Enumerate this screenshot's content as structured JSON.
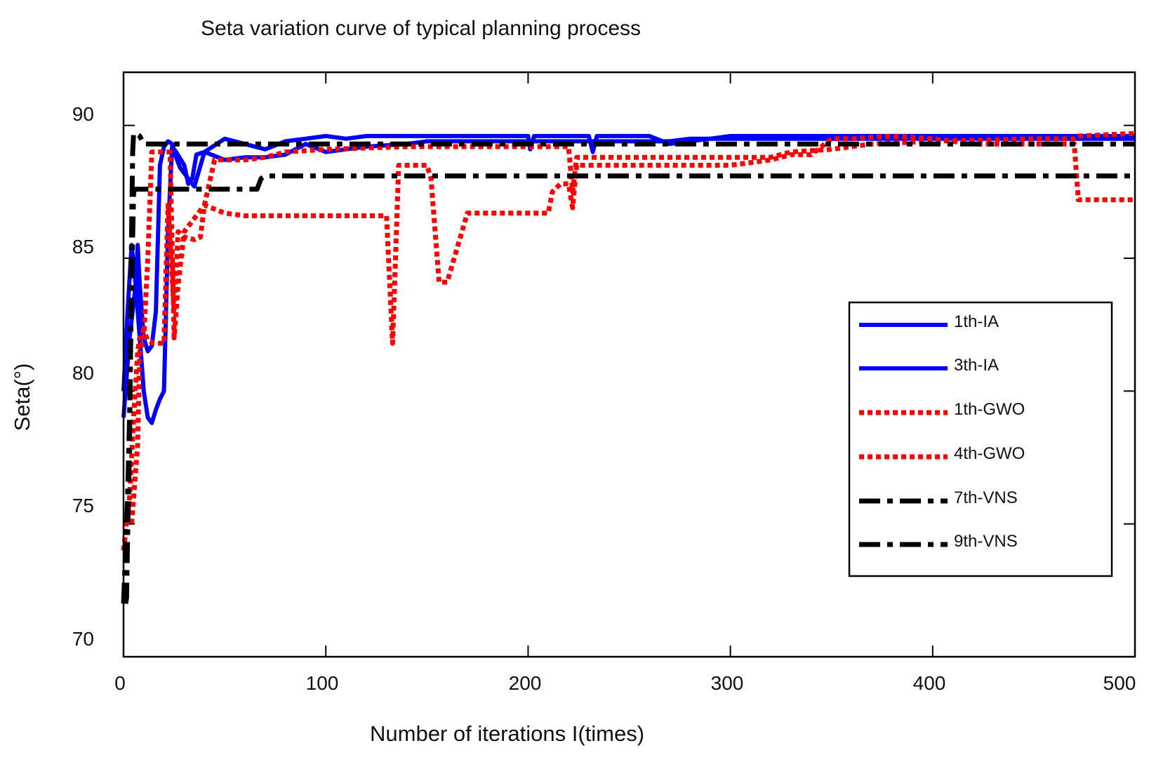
{
  "colors": {
    "ia": "#0000ff",
    "gwo": "#ff0000",
    "vns": "#000000"
  },
  "chart_data": {
    "type": "line",
    "title": "Seta variation curve of typical planning process",
    "xlabel": "Number of iterations I(times)",
    "ylabel": "Seta(°)",
    "xlim": [
      0,
      500
    ],
    "ylim": [
      70,
      92
    ],
    "xticks": [
      0,
      100,
      200,
      300,
      400,
      500
    ],
    "xtick_labels": [
      "0",
      "100",
      "200",
      "300",
      "400",
      "500"
    ],
    "yticks": [
      70,
      75,
      80,
      85,
      90
    ],
    "ytick_labels": [
      "70",
      "75",
      "80",
      "85",
      "90"
    ],
    "legend_position": "right",
    "series": [
      {
        "name": "1th-IA",
        "style": "solid",
        "color": "#0000ff",
        "x": [
          0,
          3,
          6,
          7,
          8,
          10,
          12,
          14,
          16,
          18,
          20,
          22,
          24,
          26,
          28,
          30,
          35,
          40,
          50,
          60,
          70,
          80,
          90,
          100,
          110,
          120,
          200,
          201,
          203,
          205,
          230,
          232,
          234,
          236,
          240,
          260,
          270,
          280,
          300,
          500
        ],
        "y": [
          79,
          82,
          84,
          85.5,
          84,
          82,
          81.5,
          81.7,
          83,
          88.5,
          89.2,
          89.4,
          89.3,
          88.8,
          88.4,
          88.2,
          87.7,
          89,
          89.5,
          89.3,
          89.1,
          89.4,
          89.5,
          89.6,
          89.5,
          89.6,
          89.6,
          89.1,
          89.6,
          89.6,
          89.6,
          89.0,
          89.6,
          89.6,
          89.6,
          89.6,
          89.3,
          89.4,
          89.6,
          89.6
        ]
      },
      {
        "name": "3th-IA",
        "style": "solid",
        "color": "#0000ff",
        "x": [
          0,
          2,
          4,
          6,
          8,
          10,
          12,
          14,
          16,
          18,
          20,
          22,
          24,
          26,
          30,
          32,
          34,
          36,
          40,
          50,
          60,
          70,
          80,
          90,
          100,
          110,
          120,
          140,
          150,
          260,
          270,
          280,
          300,
          400,
          500
        ],
        "y": [
          80,
          83,
          85.5,
          84,
          82,
          80,
          79,
          78.8,
          79.3,
          79.7,
          80,
          86,
          89.2,
          89,
          88.5,
          87.8,
          88,
          88.9,
          89,
          88.7,
          88.8,
          88.8,
          88.9,
          89.3,
          89.0,
          89.1,
          89.2,
          89.3,
          89.4,
          89.4,
          89.4,
          89.5,
          89.5,
          89.5,
          89.5
        ]
      },
      {
        "name": "1th-GWO",
        "style": "dotted",
        "color": "#ff0000",
        "x": [
          0,
          4,
          5,
          7,
          8,
          10,
          12,
          14,
          20,
          23,
          25,
          27,
          30,
          40,
          50,
          60,
          80,
          100,
          120,
          130,
          133,
          134,
          136,
          140,
          150,
          152,
          156,
          160,
          170,
          200,
          210,
          212,
          216,
          220,
          222,
          224,
          230,
          300,
          320,
          330,
          340,
          350,
          360,
          380,
          400,
          420,
          450,
          470,
          472,
          480,
          500
        ],
        "y": [
          75,
          75,
          76,
          78,
          81.5,
          82,
          85,
          89,
          89,
          89,
          82,
          84,
          86,
          87,
          86.7,
          86.6,
          86.6,
          86.6,
          86.6,
          86.6,
          81.8,
          84,
          88.5,
          88.5,
          88.5,
          88.0,
          84.1,
          84.1,
          86.7,
          86.7,
          86.7,
          87.5,
          87.8,
          87.8,
          86.9,
          88.5,
          88.5,
          88.5,
          88.7,
          88.9,
          88.9,
          89.5,
          89.5,
          89.6,
          89.5,
          89.3,
          89.3,
          89.3,
          87.2,
          87.2,
          87.2
        ]
      },
      {
        "name": "4th-GWO",
        "style": "dotted",
        "color": "#ff0000",
        "x": [
          0,
          3,
          5,
          7,
          8,
          10,
          12,
          15,
          18,
          20,
          22,
          25,
          27,
          30,
          35,
          38,
          40,
          45,
          50,
          60,
          70,
          80,
          100,
          140,
          150,
          220,
          222,
          224,
          230,
          250,
          300,
          320,
          330,
          350,
          370,
          400,
          450,
          470,
          472,
          500
        ],
        "y": [
          74,
          76,
          79,
          81.5,
          82,
          82.3,
          81.9,
          81.8,
          81.8,
          81.8,
          87,
          83,
          86,
          85.8,
          85.7,
          85.8,
          87,
          88.7,
          88.7,
          88.7,
          88.8,
          89.0,
          89.1,
          89.2,
          89.2,
          89.2,
          87.5,
          88.8,
          88.8,
          88.8,
          88.8,
          88.8,
          89.0,
          89.1,
          89.3,
          89.4,
          89.5,
          89.5,
          89.6,
          89.7
        ]
      },
      {
        "name": "7th-VNS",
        "style": "dash-dot",
        "color": "#000000",
        "x": [
          1,
          1.5,
          2,
          2.5,
          3,
          3.5,
          4,
          4.5,
          5,
          6,
          8,
          10,
          30,
          60,
          66,
          68,
          70,
          100,
          200,
          300,
          400,
          500
        ],
        "y": [
          72,
          72.2,
          74.5,
          76,
          78,
          82,
          86,
          89,
          89.7,
          89.7,
          89.6,
          89.3,
          89.3,
          89.3,
          89.3,
          89.3,
          89.3,
          89.3,
          89.3,
          89.3,
          89.3,
          89.3
        ]
      },
      {
        "name": "9th-VNS",
        "style": "dash-dot",
        "color": "#000000",
        "x": [
          0,
          1,
          2,
          3,
          4,
          5,
          6,
          8,
          10,
          40,
          60,
          66,
          68,
          70,
          100,
          200,
          300,
          400,
          500
        ],
        "y": [
          72,
          74,
          76,
          79,
          84,
          87.5,
          87.6,
          87.6,
          87.6,
          87.6,
          87.6,
          87.6,
          88.0,
          88.1,
          88.1,
          88.1,
          88.1,
          88.1,
          88.1
        ]
      }
    ]
  }
}
